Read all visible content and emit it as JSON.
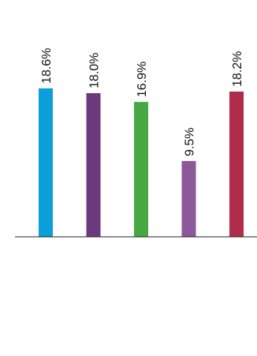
{
  "chart_data": {
    "type": "bar",
    "categories": [
      "",
      "",
      "",
      "",
      ""
    ],
    "values": [
      18.6,
      18.0,
      16.9,
      9.5,
      18.2
    ],
    "labels": [
      "18.6%",
      "18.0%",
      "16.9%",
      "9.5%",
      "18.2%"
    ],
    "colors": [
      "#0a9fd8",
      "#6b3a7d",
      "#46a843",
      "#8c5a98",
      "#b02c4a"
    ],
    "title": "",
    "xlabel": "",
    "ylabel": "",
    "grid": false,
    "legend": "none"
  }
}
